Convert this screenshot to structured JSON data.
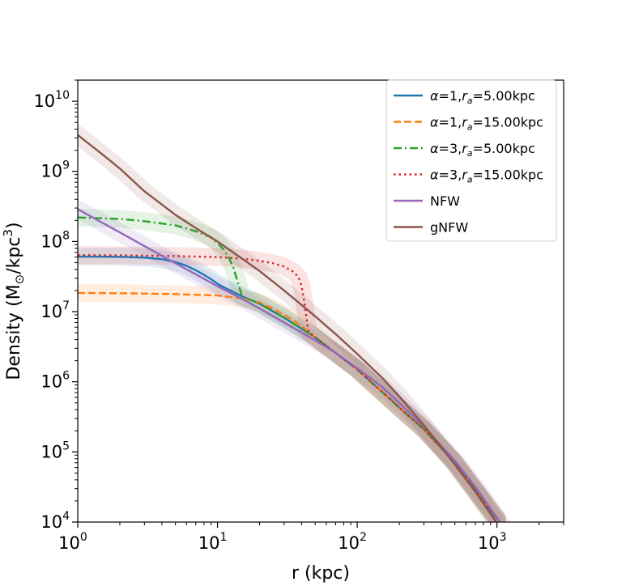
{
  "chart_data": {
    "type": "line",
    "x_scale": "log",
    "y_scale": "log",
    "xlim": [
      1,
      3000
    ],
    "ylim": [
      10000,
      20000000000
    ],
    "xlabel": "r (kpc)",
    "ylabel_text": "Density (M",
    "ylabel_sub": "⊙",
    "ylabel_unit": "/kpc",
    "ylabel_exp": "3",
    "ylabel_close": ")",
    "x_ticks": [
      {
        "value": 1,
        "base": "10",
        "exp": "0"
      },
      {
        "value": 10,
        "base": "10",
        "exp": "1"
      },
      {
        "value": 100,
        "base": "10",
        "exp": "2"
      },
      {
        "value": 1000,
        "base": "10",
        "exp": "3"
      }
    ],
    "y_ticks": [
      {
        "value": 10000,
        "base": "10",
        "exp": "4"
      },
      {
        "value": 100000,
        "base": "10",
        "exp": "5"
      },
      {
        "value": 1000000,
        "base": "10",
        "exp": "6"
      },
      {
        "value": 10000000,
        "base": "10",
        "exp": "7"
      },
      {
        "value": 100000000,
        "base": "10",
        "exp": "8"
      },
      {
        "value": 1000000000,
        "base": "10",
        "exp": "9"
      },
      {
        "value": 10000000000,
        "base": "10",
        "exp": "10"
      }
    ],
    "legend_position": "upper right",
    "series": [
      {
        "name": "α=1, r_a=5.00kpc",
        "legend_alpha": "α",
        "legend_mid": "=1,",
        "legend_r": "r",
        "legend_sub": "a",
        "legend_tail": "=5.00kpc",
        "color": "#1f77b4",
        "dash": "solid",
        "band": true,
        "x": [
          1,
          2,
          3,
          4,
          5,
          6,
          7,
          8,
          9,
          10,
          11,
          15,
          20,
          30,
          50,
          100,
          200,
          300,
          500,
          1000
        ],
        "y": [
          61000000,
          60500000,
          59000000,
          56000000,
          51000000,
          45000000,
          39000000,
          33500000,
          29000000,
          25000000,
          22500000,
          16500000,
          13000000,
          8200000,
          4300000,
          1500000,
          430000,
          210000,
          70000,
          11000
        ]
      },
      {
        "name": "α=1, r_a=15.00kpc",
        "legend_alpha": "α",
        "legend_mid": "=1,",
        "legend_r": "r",
        "legend_sub": "a",
        "legend_tail": "=15.00kpc",
        "color": "#ff7f0e",
        "dash": "dashed",
        "band": true,
        "x": [
          1,
          2,
          5,
          10,
          15,
          20,
          25,
          30,
          35,
          40,
          50,
          100,
          200,
          300,
          500,
          1000
        ],
        "y": [
          18500000,
          18300000,
          17800000,
          17000000,
          15500000,
          13500000,
          11000000,
          9000000,
          7500000,
          6200000,
          4300000,
          1500000,
          430000,
          210000,
          70000,
          11000
        ]
      },
      {
        "name": "α=3, r_a=5.00kpc",
        "legend_alpha": "α",
        "legend_mid": "=3,",
        "legend_r": "r",
        "legend_sub": "a",
        "legend_tail": "=5.00kpc",
        "color": "#2ca02c",
        "dash": "dashdot",
        "band": true,
        "x": [
          1,
          2,
          3,
          5,
          7,
          9,
          10,
          11,
          12,
          13,
          14,
          15,
          20,
          30,
          50,
          100,
          200,
          300,
          500,
          1000
        ],
        "y": [
          220000000,
          210000000,
          195000000,
          170000000,
          140000000,
          115000000,
          95000000,
          78000000,
          60000000,
          42000000,
          26000000,
          16500000,
          13000000,
          8200000,
          4300000,
          1500000,
          430000,
          210000,
          70000,
          11000
        ]
      },
      {
        "name": "α=3, r_a=15.00kpc",
        "legend_alpha": "α",
        "legend_mid": "=3,",
        "legend_r": "r",
        "legend_sub": "a",
        "legend_tail": "=15.00kpc",
        "color": "#d62728",
        "dash": "dotted",
        "band": true,
        "x": [
          1,
          2,
          5,
          10,
          15,
          20,
          25,
          30,
          35,
          38,
          40,
          42,
          44,
          45,
          50,
          100,
          200,
          300,
          500,
          1000
        ],
        "y": [
          64000000,
          63500000,
          62000000,
          60000000,
          57000000,
          53000000,
          49000000,
          44000000,
          37000000,
          31000000,
          23000000,
          13000000,
          6500000,
          5200000,
          4300000,
          1500000,
          430000,
          210000,
          70000,
          11000
        ]
      },
      {
        "name": "NFW",
        "legend_text": "NFW",
        "color": "#9467bd",
        "dash": "solid",
        "band": true,
        "x": [
          1,
          1.5,
          2,
          3,
          5,
          7,
          10,
          15,
          20,
          30,
          50,
          70,
          100,
          150,
          200,
          300,
          500,
          700,
          1000,
          1100
        ],
        "y": [
          290000000,
          185000000,
          135000000,
          86000000,
          49000000,
          34000000,
          23000000,
          15200000,
          11100000,
          7000000,
          3900000,
          2600000,
          1560000,
          850000,
          500000,
          230000,
          75000,
          32000,
          11500,
          8500
        ]
      },
      {
        "name": "gNFW",
        "legend_text": "gNFW",
        "color": "#8c564b",
        "dash": "solid",
        "band": true,
        "x": [
          1,
          1.5,
          2,
          3,
          5,
          7,
          10,
          15,
          20,
          30,
          50,
          70,
          100,
          150,
          200,
          300,
          500,
          700,
          1000,
          1100
        ],
        "y": [
          3300000000,
          1750000000,
          1100000000,
          520000000,
          240000000,
          155000000,
          100000000,
          57000000,
          38000000,
          20000000,
          8600000,
          4800000,
          2500000,
          1150000,
          620000,
          240000,
          66000,
          27000,
          9600,
          7400
        ]
      }
    ]
  }
}
